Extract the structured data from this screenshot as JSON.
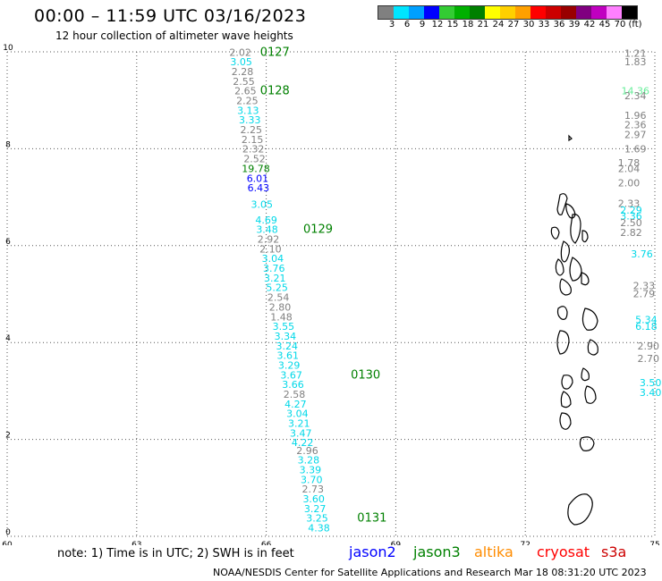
{
  "header": {
    "title": "00:00 – 11:59 UTC 03/16/2023",
    "subtitle": "12 hour collection of altimeter wave heights"
  },
  "colorbar": {
    "colors": [
      "#808080",
      "#00e5ff",
      "#00a0ff",
      "#0000ff",
      "#33cc33",
      "#00b000",
      "#008000",
      "#ffff00",
      "#ffd000",
      "#ffa000",
      "#ff0000",
      "#cc0000",
      "#990000",
      "#800080",
      "#c000c0",
      "#ff80ff",
      "#000000"
    ],
    "labels": [
      "3",
      "6",
      "9",
      "12",
      "15",
      "18",
      "21",
      "24",
      "27",
      "30",
      "33",
      "36",
      "39",
      "42",
      "45",
      "70",
      "(ft)"
    ]
  },
  "chart_data": {
    "type": "scatter",
    "title": "00:00 – 11:59 UTC 03/16/2023",
    "subtitle": "12 hour collection of altimeter wave heights",
    "xlim": [
      60,
      75
    ],
    "ylim": [
      0,
      10
    ],
    "x_ticks": [
      "60",
      "63",
      "66",
      "69",
      "72",
      "75"
    ],
    "y_ticks": [
      "0",
      "2",
      "4",
      "6",
      "8",
      "10"
    ],
    "grid": true,
    "series_colors": {
      "jason2": "#0000ff",
      "jason3": "#008000",
      "altika": "#ff8c00",
      "cryosat": "#ff0000",
      "s3a": "#cc0000",
      "other": "#808080",
      "cyan": "#00d8e8"
    },
    "main_track": [
      {
        "lon": 65.4,
        "lat": 9.92,
        "v": "2.02",
        "c": "other"
      },
      {
        "lon": 65.42,
        "lat": 9.72,
        "v": "3.05",
        "c": "cyan"
      },
      {
        "lon": 65.45,
        "lat": 9.52,
        "v": "2.28",
        "c": "other"
      },
      {
        "lon": 65.48,
        "lat": 9.32,
        "v": "2.55",
        "c": "other"
      },
      {
        "lon": 65.52,
        "lat": 9.12,
        "v": "2.65",
        "c": "other"
      },
      {
        "lon": 65.56,
        "lat": 8.92,
        "v": "2.25",
        "c": "other"
      },
      {
        "lon": 65.58,
        "lat": 8.72,
        "v": "3.13",
        "c": "cyan"
      },
      {
        "lon": 65.62,
        "lat": 8.52,
        "v": "3.33",
        "c": "cyan"
      },
      {
        "lon": 65.65,
        "lat": 8.32,
        "v": "2.25",
        "c": "other"
      },
      {
        "lon": 65.68,
        "lat": 8.12,
        "v": "2.15",
        "c": "other"
      },
      {
        "lon": 65.7,
        "lat": 7.92,
        "v": "2.32",
        "c": "other"
      },
      {
        "lon": 65.73,
        "lat": 7.72,
        "v": "2.52",
        "c": "other"
      },
      {
        "lon": 65.76,
        "lat": 7.52,
        "v": "19.78",
        "c": "jason3"
      },
      {
        "lon": 65.8,
        "lat": 7.32,
        "v": "6.01",
        "c": "jason2"
      },
      {
        "lon": 65.82,
        "lat": 7.12,
        "v": "6.43",
        "c": "jason2"
      },
      {
        "lon": 65.9,
        "lat": 6.78,
        "v": "3.05",
        "c": "cyan"
      },
      {
        "lon": 66.0,
        "lat": 6.46,
        "v": "4.69",
        "c": "cyan"
      },
      {
        "lon": 66.02,
        "lat": 6.26,
        "v": "3.48",
        "c": "cyan"
      },
      {
        "lon": 66.05,
        "lat": 6.06,
        "v": "2.92",
        "c": "other"
      },
      {
        "lon": 66.1,
        "lat": 5.86,
        "v": "2.10",
        "c": "other"
      },
      {
        "lon": 66.15,
        "lat": 5.66,
        "v": "3.04",
        "c": "cyan"
      },
      {
        "lon": 66.18,
        "lat": 5.46,
        "v": "3.76",
        "c": "cyan"
      },
      {
        "lon": 66.2,
        "lat": 5.26,
        "v": "3.21",
        "c": "cyan"
      },
      {
        "lon": 66.25,
        "lat": 5.06,
        "v": "5.25",
        "c": "cyan"
      },
      {
        "lon": 66.28,
        "lat": 4.86,
        "v": "2.54",
        "c": "other"
      },
      {
        "lon": 66.32,
        "lat": 4.66,
        "v": "2.80",
        "c": "other"
      },
      {
        "lon": 66.35,
        "lat": 4.46,
        "v": "1.48",
        "c": "other"
      },
      {
        "lon": 66.4,
        "lat": 4.26,
        "v": "3.55",
        "c": "cyan"
      },
      {
        "lon": 66.44,
        "lat": 4.06,
        "v": "3.34",
        "c": "cyan"
      },
      {
        "lon": 66.48,
        "lat": 3.86,
        "v": "3.24",
        "c": "cyan"
      },
      {
        "lon": 66.5,
        "lat": 3.66,
        "v": "3.61",
        "c": "cyan"
      },
      {
        "lon": 66.53,
        "lat": 3.46,
        "v": "3.29",
        "c": "cyan"
      },
      {
        "lon": 66.58,
        "lat": 3.26,
        "v": "3.67",
        "c": "cyan"
      },
      {
        "lon": 66.62,
        "lat": 3.06,
        "v": "3.66",
        "c": "cyan"
      },
      {
        "lon": 66.65,
        "lat": 2.86,
        "v": "2.58",
        "c": "other"
      },
      {
        "lon": 66.68,
        "lat": 2.66,
        "v": "4.27",
        "c": "cyan"
      },
      {
        "lon": 66.72,
        "lat": 2.46,
        "v": "3.04",
        "c": "cyan"
      },
      {
        "lon": 66.76,
        "lat": 2.26,
        "v": "3.21",
        "c": "cyan"
      },
      {
        "lon": 66.8,
        "lat": 2.06,
        "v": "3.47",
        "c": "cyan"
      },
      {
        "lon": 66.84,
        "lat": 1.86,
        "v": "4.22",
        "c": "cyan"
      },
      {
        "lon": 66.95,
        "lat": 1.7,
        "v": "2.96",
        "c": "other"
      },
      {
        "lon": 66.98,
        "lat": 1.5,
        "v": "3.28",
        "c": "cyan"
      },
      {
        "lon": 67.02,
        "lat": 1.3,
        "v": "3.39",
        "c": "cyan"
      },
      {
        "lon": 67.05,
        "lat": 1.1,
        "v": "3.70",
        "c": "cyan"
      },
      {
        "lon": 67.08,
        "lat": 0.9,
        "v": "2.73",
        "c": "other"
      },
      {
        "lon": 67.1,
        "lat": 0.7,
        "v": "3.60",
        "c": "cyan"
      },
      {
        "lon": 67.13,
        "lat": 0.5,
        "v": "3.27",
        "c": "cyan"
      },
      {
        "lon": 67.18,
        "lat": 0.3,
        "v": "3.25",
        "c": "cyan"
      },
      {
        "lon": 67.22,
        "lat": 0.1,
        "v": "4.38",
        "c": "cyan"
      }
    ],
    "time_labels": [
      {
        "lon": 66.2,
        "lat": 9.92,
        "t": "0127"
      },
      {
        "lon": 66.2,
        "lat": 9.12,
        "t": "0128"
      },
      {
        "lon": 67.2,
        "lat": 6.26,
        "t": "0129"
      },
      {
        "lon": 68.3,
        "lat": 3.26,
        "t": "0130"
      },
      {
        "lon": 68.45,
        "lat": 0.3,
        "t": "0131"
      }
    ],
    "edge_track": [
      {
        "lon": 74.55,
        "lat": 9.9,
        "v": "1.21",
        "c": "other"
      },
      {
        "lon": 74.55,
        "lat": 9.72,
        "v": "1.83",
        "c": "other"
      },
      {
        "lon": 74.55,
        "lat": 9.12,
        "v": "14.36",
        "c": "cyanlight"
      },
      {
        "lon": 74.55,
        "lat": 9.02,
        "v": "2.34",
        "c": "other"
      },
      {
        "lon": 74.55,
        "lat": 8.62,
        "v": "1.96",
        "c": "other"
      },
      {
        "lon": 74.55,
        "lat": 8.42,
        "v": "2.36",
        "c": "other"
      },
      {
        "lon": 74.55,
        "lat": 8.22,
        "v": "2.97",
        "c": "other"
      },
      {
        "lon": 74.55,
        "lat": 7.92,
        "v": "1.69",
        "c": "other"
      },
      {
        "lon": 74.4,
        "lat": 7.64,
        "v": "1.78",
        "c": "other"
      },
      {
        "lon": 74.4,
        "lat": 7.52,
        "v": "2.04",
        "c": "other"
      },
      {
        "lon": 74.4,
        "lat": 7.22,
        "v": "2.00",
        "c": "other"
      },
      {
        "lon": 74.4,
        "lat": 6.8,
        "v": "2.33",
        "c": "other"
      },
      {
        "lon": 74.45,
        "lat": 6.66,
        "v": "2.29",
        "c": "cyan"
      },
      {
        "lon": 74.45,
        "lat": 6.54,
        "v": "3.36",
        "c": "cyan"
      },
      {
        "lon": 74.45,
        "lat": 6.4,
        "v": "2.50",
        "c": "other"
      },
      {
        "lon": 74.45,
        "lat": 6.2,
        "v": "2.82",
        "c": "other"
      },
      {
        "lon": 74.7,
        "lat": 5.76,
        "v": "3.76",
        "c": "cyan"
      },
      {
        "lon": 74.75,
        "lat": 5.1,
        "v": "2.33",
        "c": "other"
      },
      {
        "lon": 74.75,
        "lat": 4.94,
        "v": "2.79",
        "c": "other"
      },
      {
        "lon": 74.8,
        "lat": 4.4,
        "v": "5.34",
        "c": "cyan"
      },
      {
        "lon": 74.8,
        "lat": 4.26,
        "v": "6.18",
        "c": "cyan"
      },
      {
        "lon": 74.85,
        "lat": 3.86,
        "v": "2.90",
        "c": "other"
      },
      {
        "lon": 74.85,
        "lat": 3.6,
        "v": "2.70",
        "c": "other"
      },
      {
        "lon": 74.9,
        "lat": 3.1,
        "v": "3.50",
        "c": "cyan"
      },
      {
        "lon": 74.9,
        "lat": 2.9,
        "v": "3.40",
        "c": "cyan"
      }
    ]
  },
  "footer": {
    "note": "note:  1) Time is in UTC;  2) SWH is in feet",
    "legend": [
      {
        "label": "jason2",
        "color": "#0000ff"
      },
      {
        "label": "jason3",
        "color": "#008000"
      },
      {
        "label": "altika",
        "color": "#ff8c00"
      },
      {
        "label": "cryosat",
        "color": "#ff0000"
      },
      {
        "label": "s3a",
        "color": "#cc0000"
      }
    ],
    "credit": "NOAA/NESDIS Center for Satellite Applications and Research     Mar 18 08:31:20 UTC 2023"
  }
}
